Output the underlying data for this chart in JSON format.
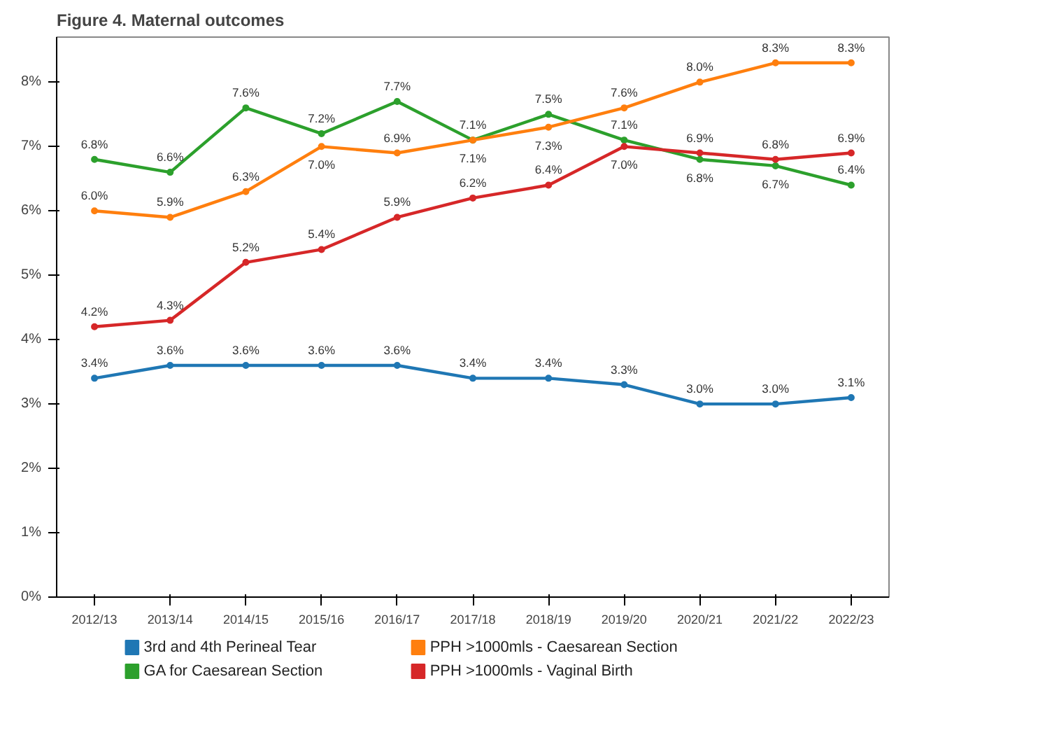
{
  "chart_data": {
    "type": "line",
    "title": "Figure 4. Maternal outcomes",
    "categories": [
      "2012/13",
      "2013/14",
      "2014/15",
      "2015/16",
      "2016/17",
      "2017/18",
      "2018/19",
      "2019/20",
      "2020/21",
      "2021/22",
      "2022/23"
    ],
    "series": [
      {
        "name": "3rd and 4th Perineal Tear",
        "color": "#1f77b4",
        "values": [
          3.4,
          3.6,
          3.6,
          3.6,
          3.6,
          3.4,
          3.4,
          3.3,
          3.0,
          3.0,
          3.1
        ],
        "value_labels": [
          "3.4%",
          "3.6%",
          "3.6%",
          "3.6%",
          "3.6%",
          "3.4%",
          "3.4%",
          "3.3%",
          "3.0%",
          "3.0%",
          "3.1%"
        ]
      },
      {
        "name": "GA for Caesarean Section",
        "color": "#2ca02c",
        "values": [
          6.8,
          6.6,
          7.6,
          7.2,
          7.7,
          7.1,
          7.5,
          7.1,
          6.8,
          6.7,
          6.4
        ],
        "value_labels": [
          "6.8%",
          "6.6%",
          "7.6%",
          "7.2%",
          "7.7%",
          "7.1%",
          "7.5%",
          "7.1%",
          "6.8%",
          "6.7%",
          "6.4%"
        ]
      },
      {
        "name": "PPH >1000mls - Caesarean Section",
        "color": "#ff7f0e",
        "values": [
          6.0,
          5.9,
          6.3,
          7.0,
          6.9,
          7.1,
          7.3,
          7.6,
          8.0,
          8.3,
          8.3
        ],
        "value_labels": [
          "6.0%",
          "5.9%",
          "6.3%",
          "7.0%",
          "6.9%",
          "7.1%",
          "7.3%",
          "7.6%",
          "8.0%",
          "8.3%",
          "8.3%"
        ]
      },
      {
        "name": "PPH >1000mls - Vaginal Birth",
        "color": "#d62728",
        "values": [
          4.2,
          4.3,
          5.2,
          5.4,
          5.9,
          6.2,
          6.4,
          7.0,
          6.9,
          6.8,
          6.9
        ],
        "value_labels": [
          "4.2%",
          "4.3%",
          "5.2%",
          "5.4%",
          "5.9%",
          "6.2%",
          "6.4%",
          "7.0%",
          "6.9%",
          "6.8%",
          "6.9%"
        ]
      }
    ],
    "ylim": [
      0,
      8.7
    ],
    "yticks": [
      {
        "value": 0,
        "label": "0%"
      },
      {
        "value": 1,
        "label": "1%"
      },
      {
        "value": 2,
        "label": "2%"
      },
      {
        "value": 3,
        "label": "3%"
      },
      {
        "value": 4,
        "label": "4%"
      },
      {
        "value": 5,
        "label": "5%"
      },
      {
        "value": 6,
        "label": "6%"
      },
      {
        "value": 7,
        "label": "7%"
      },
      {
        "value": 8,
        "label": "8%"
      }
    ],
    "legend": "bottom",
    "marker": "circle",
    "line_style": "solid"
  }
}
